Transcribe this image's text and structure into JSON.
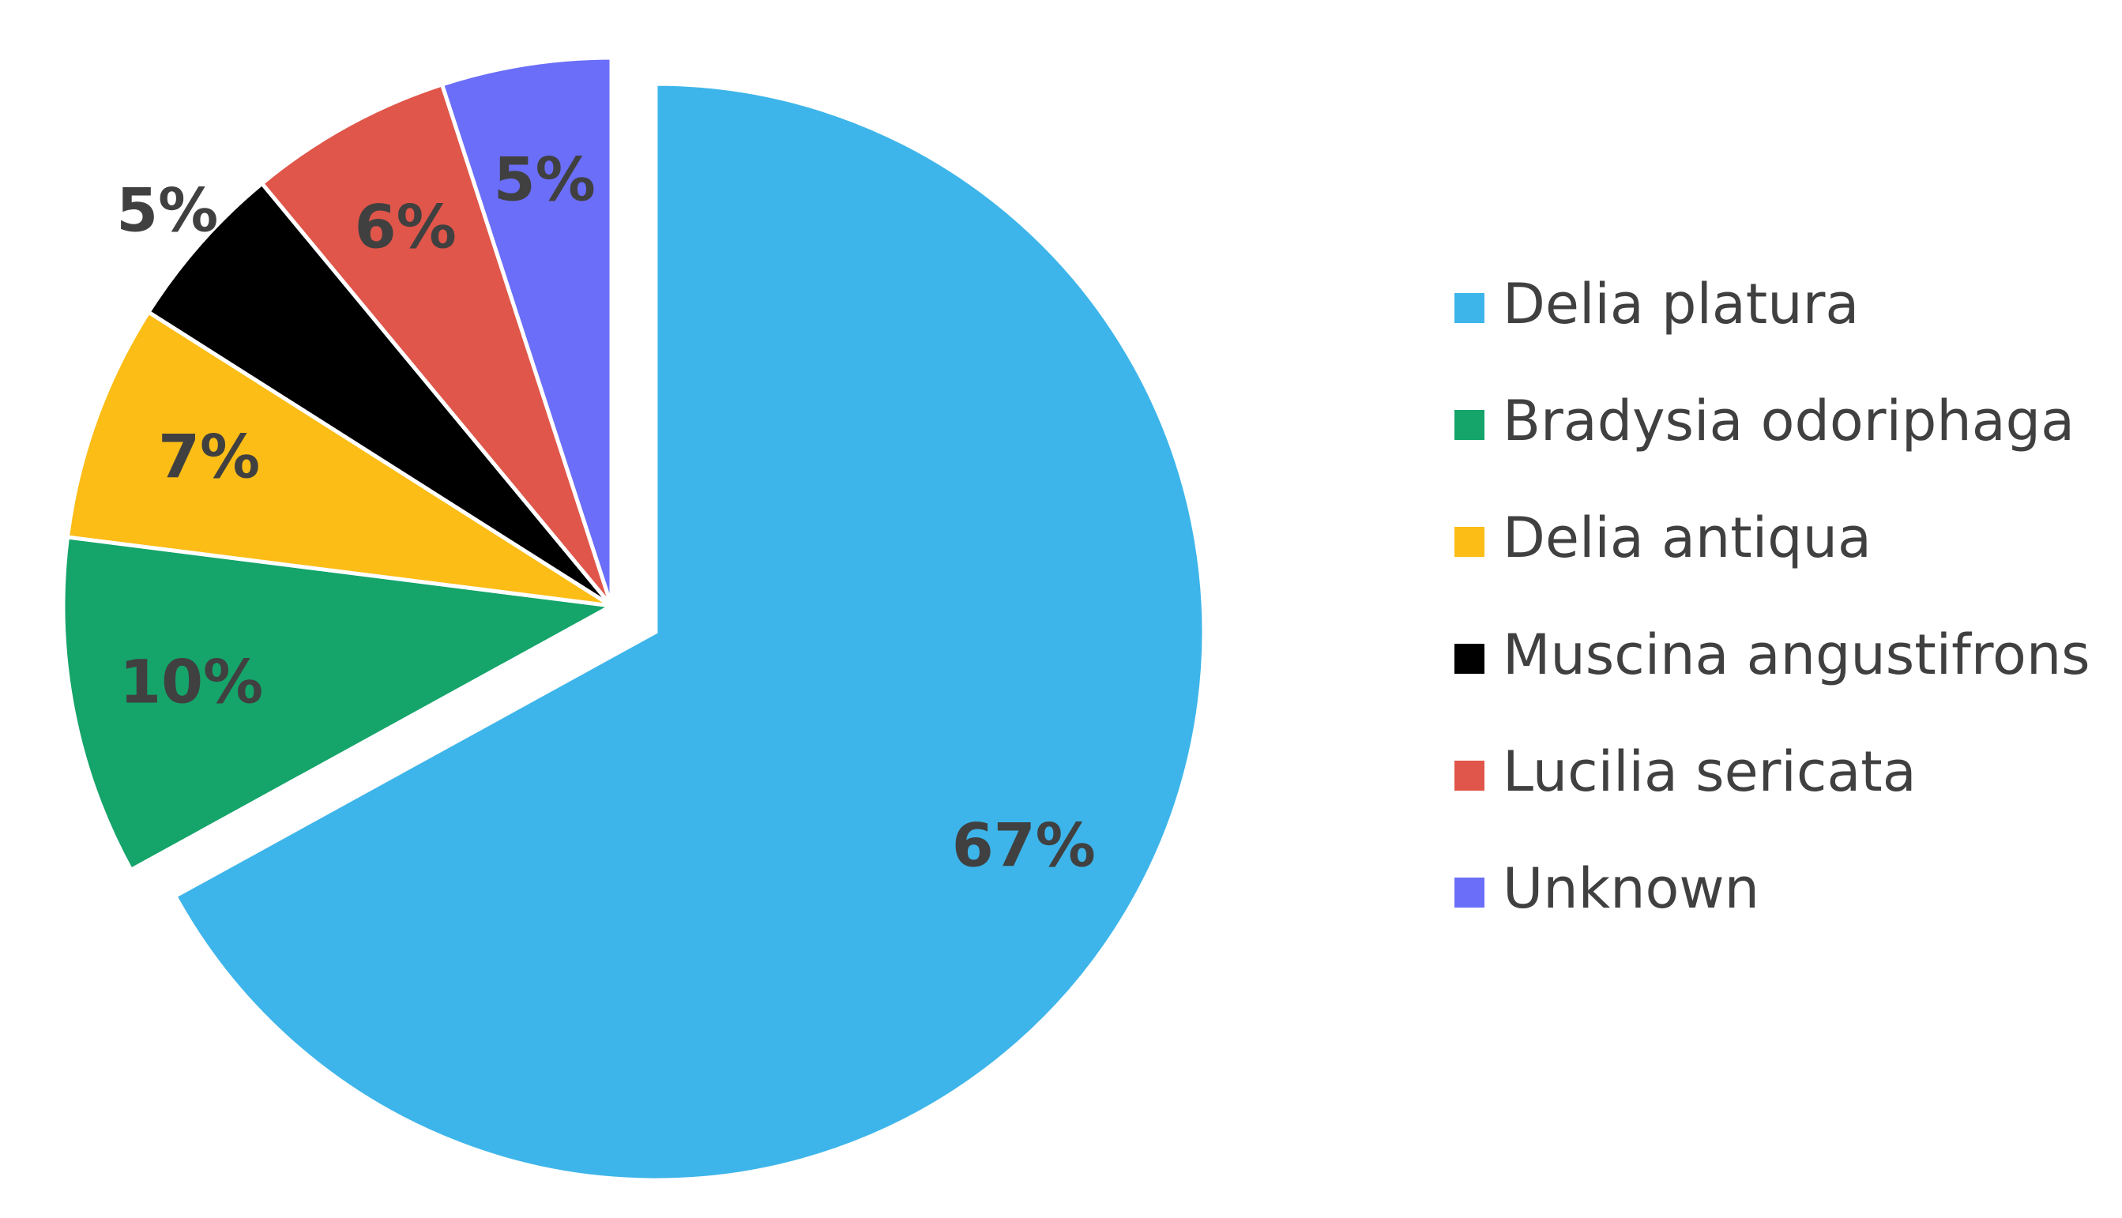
{
  "chart_data": {
    "type": "pie",
    "categories": [
      "Delia platura",
      "Bradysia odoriphaga",
      "Delia antiqua",
      "Muscina angustifrons",
      "Lucilia sericata",
      "Unknown"
    ],
    "values": [
      67,
      10,
      7,
      5,
      6,
      5
    ],
    "value_labels": [
      "67%",
      "10%",
      "7%",
      "5%",
      "6%",
      "5%"
    ],
    "colors": [
      "#3db5ea",
      "#15a46a",
      "#fbbd16",
      "#000000",
      "#e0564a",
      "#6b6ef8"
    ],
    "legend": "right"
  }
}
